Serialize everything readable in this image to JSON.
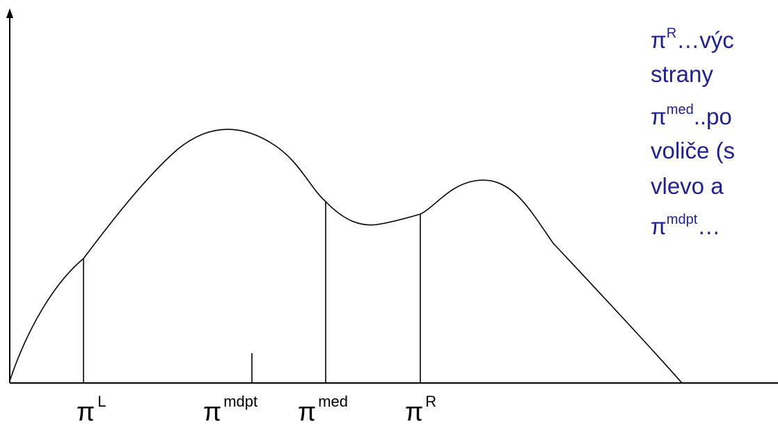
{
  "symbol": "π",
  "axis_labels": [
    {
      "id": "L",
      "sup": "L"
    },
    {
      "id": "mdpt",
      "sup": "mdpt"
    },
    {
      "id": "med",
      "sup": "med"
    },
    {
      "id": "R",
      "sup": "R"
    }
  ],
  "notes": {
    "n1": {
      "sup": "R",
      "line1": "…výc",
      "line2": "strany"
    },
    "n2": {
      "sup": "med",
      "line1": "..po",
      "line2": "voliče (s",
      "line3": "vlevo a"
    },
    "n3": {
      "sup": "mdpt",
      "line1": "…"
    }
  },
  "colors": {
    "text": "#1f1f9a",
    "lines": "#000000"
  }
}
